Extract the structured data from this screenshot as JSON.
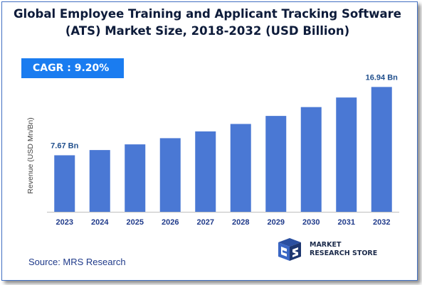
{
  "title": {
    "line1": "Global Employee Training and Applicant Tracking Software",
    "line2": "(ATS) Market Size, 2018-2032 (USD Billion)"
  },
  "cagr_label": "CAGR : 9.20%",
  "source": "Source: MRS Research",
  "logo": {
    "line1": "MARKET",
    "line2": "RESEARCH STORE",
    "icon": "mrs-logo-icon"
  },
  "colors": {
    "bar": "#4a78d4",
    "axis_text": "#1f3a8a",
    "cagr_bg": "#1a7cf0",
    "border": "#4472c4"
  },
  "chart_data": {
    "type": "bar",
    "categories": [
      "2023",
      "2024",
      "2025",
      "2026",
      "2027",
      "2028",
      "2029",
      "2030",
      "2031",
      "2032"
    ],
    "values": [
      7.67,
      8.38,
      9.15,
      9.99,
      10.91,
      11.92,
      13.01,
      14.21,
      15.51,
      16.94
    ],
    "data_labels": [
      {
        "index": 0,
        "text": "7.67 Bn"
      },
      {
        "index": 9,
        "text": "16.94 Bn"
      }
    ],
    "title": "Global Employee Training and Applicant Tracking Software (ATS) Market Size, 2018-2032 (USD Billion)",
    "xlabel": "",
    "ylabel": "Revenue (USD Mn/Bn)",
    "ylim": [
      0,
      19
    ],
    "grid": false,
    "legend": "none"
  }
}
